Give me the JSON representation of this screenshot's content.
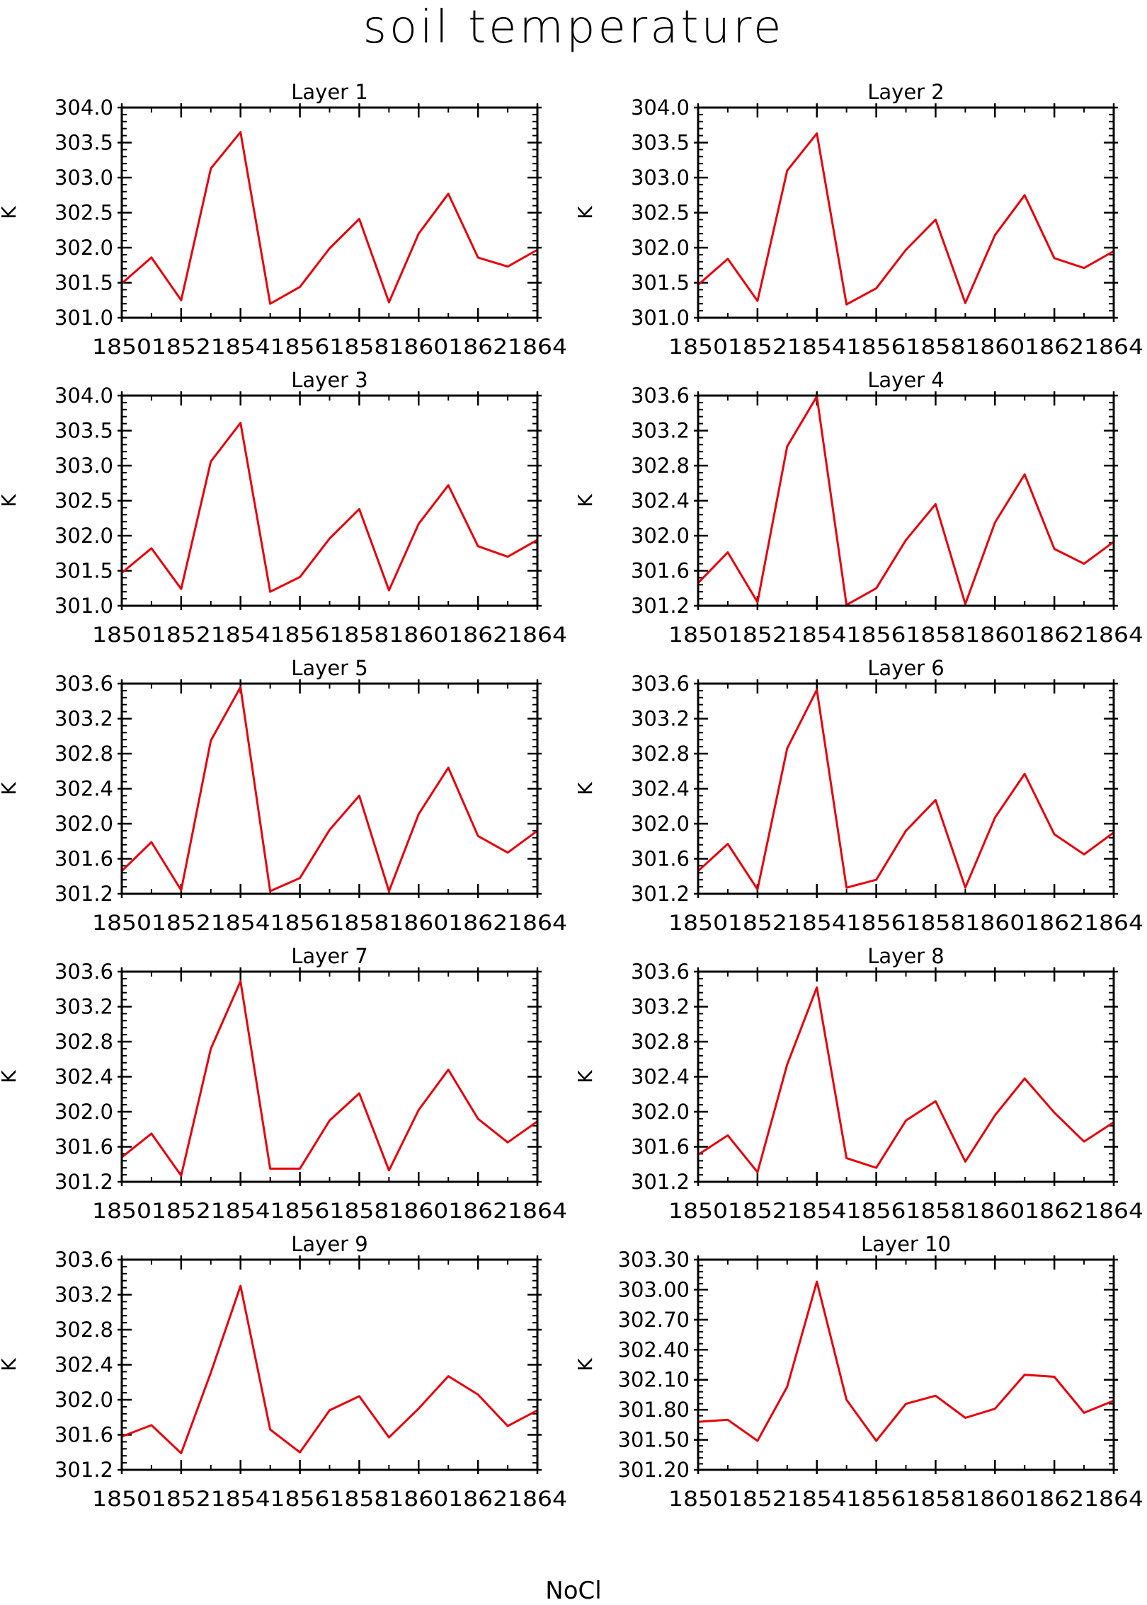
{
  "figure": {
    "title": "soil temperature",
    "footer": "NoCl",
    "line_color": "#e8000b"
  },
  "chart_data": [
    {
      "type": "line",
      "title": "Layer 1",
      "xlabel": "",
      "ylabel": "K",
      "x": [
        1850,
        1851,
        1852,
        1853,
        1854,
        1855,
        1856,
        1857,
        1858,
        1859,
        1860,
        1861,
        1862,
        1863,
        1864
      ],
      "xticks": [
        "1850",
        "1852",
        "1854",
        "1856",
        "1858",
        "1860",
        "1862",
        "1864"
      ],
      "yticks": [
        "301.0",
        "301.5",
        "302.0",
        "302.5",
        "303.0",
        "303.5",
        "304.0"
      ],
      "ylim": [
        301.0,
        304.0
      ],
      "values": [
        301.49,
        301.86,
        301.25,
        303.13,
        303.65,
        301.2,
        301.44,
        301.99,
        302.41,
        301.22,
        302.2,
        302.77,
        301.86,
        301.73,
        301.97
      ]
    },
    {
      "type": "line",
      "title": "Layer 2",
      "xlabel": "",
      "ylabel": "K",
      "x": [
        1850,
        1851,
        1852,
        1853,
        1854,
        1855,
        1856,
        1857,
        1858,
        1859,
        1860,
        1861,
        1862,
        1863,
        1864
      ],
      "xticks": [
        "1850",
        "1852",
        "1854",
        "1856",
        "1858",
        "1860",
        "1862",
        "1864"
      ],
      "yticks": [
        "301.0",
        "301.5",
        "302.0",
        "302.5",
        "303.0",
        "303.5",
        "304.0"
      ],
      "ylim": [
        301.0,
        304.0
      ],
      "values": [
        301.47,
        301.84,
        301.24,
        303.1,
        303.63,
        301.19,
        301.42,
        301.97,
        302.4,
        301.21,
        302.18,
        302.75,
        301.85,
        301.71,
        301.95
      ]
    },
    {
      "type": "line",
      "title": "Layer 3",
      "xlabel": "",
      "ylabel": "K",
      "x": [
        1850,
        1851,
        1852,
        1853,
        1854,
        1855,
        1856,
        1857,
        1858,
        1859,
        1860,
        1861,
        1862,
        1863,
        1864
      ],
      "xticks": [
        "1850",
        "1852",
        "1854",
        "1856",
        "1858",
        "1860",
        "1862",
        "1864"
      ],
      "yticks": [
        "301.0",
        "301.5",
        "302.0",
        "302.5",
        "303.0",
        "303.5",
        "304.0"
      ],
      "ylim": [
        301.0,
        304.0
      ],
      "values": [
        301.47,
        301.82,
        301.24,
        303.06,
        303.61,
        301.2,
        301.41,
        301.96,
        302.38,
        301.22,
        302.17,
        302.72,
        301.85,
        301.7,
        301.94
      ]
    },
    {
      "type": "line",
      "title": "Layer 4",
      "xlabel": "",
      "ylabel": "K",
      "x": [
        1850,
        1851,
        1852,
        1853,
        1854,
        1855,
        1856,
        1857,
        1858,
        1859,
        1860,
        1861,
        1862,
        1863,
        1864
      ],
      "xticks": [
        "1850",
        "1852",
        "1854",
        "1856",
        "1858",
        "1860",
        "1862",
        "1864"
      ],
      "yticks": [
        "301.2",
        "301.6",
        "302.0",
        "302.4",
        "302.8",
        "303.2",
        "303.6"
      ],
      "ylim": [
        301.2,
        303.6
      ],
      "values": [
        301.46,
        301.81,
        301.24,
        303.02,
        303.59,
        301.21,
        301.4,
        301.95,
        302.36,
        301.22,
        302.15,
        302.7,
        301.85,
        301.68,
        301.93
      ]
    },
    {
      "type": "line",
      "title": "Layer 5",
      "xlabel": "",
      "ylabel": "K",
      "x": [
        1850,
        1851,
        1852,
        1853,
        1854,
        1855,
        1856,
        1857,
        1858,
        1859,
        1860,
        1861,
        1862,
        1863,
        1864
      ],
      "xticks": [
        "1850",
        "1852",
        "1854",
        "1856",
        "1858",
        "1860",
        "1862",
        "1864"
      ],
      "yticks": [
        "301.2",
        "301.6",
        "302.0",
        "302.4",
        "302.8",
        "303.2",
        "303.6"
      ],
      "ylim": [
        301.2,
        303.6
      ],
      "values": [
        301.46,
        301.79,
        301.24,
        302.95,
        303.56,
        301.23,
        301.38,
        301.93,
        302.32,
        301.23,
        302.11,
        302.64,
        301.86,
        301.67,
        301.92
      ]
    },
    {
      "type": "line",
      "title": "Layer 6",
      "xlabel": "",
      "ylabel": "K",
      "x": [
        1850,
        1851,
        1852,
        1853,
        1854,
        1855,
        1856,
        1857,
        1858,
        1859,
        1860,
        1861,
        1862,
        1863,
        1864
      ],
      "xticks": [
        "1850",
        "1852",
        "1854",
        "1856",
        "1858",
        "1860",
        "1862",
        "1864"
      ],
      "yticks": [
        "301.2",
        "301.6",
        "302.0",
        "302.4",
        "302.8",
        "303.2",
        "303.6"
      ],
      "ylim": [
        301.2,
        303.6
      ],
      "values": [
        301.46,
        301.77,
        301.25,
        302.86,
        303.53,
        301.27,
        301.36,
        301.92,
        302.27,
        301.27,
        302.07,
        302.57,
        301.88,
        301.65,
        301.9
      ]
    },
    {
      "type": "line",
      "title": "Layer 7",
      "xlabel": "",
      "ylabel": "K",
      "x": [
        1850,
        1851,
        1852,
        1853,
        1854,
        1855,
        1856,
        1857,
        1858,
        1859,
        1860,
        1861,
        1862,
        1863,
        1864
      ],
      "xticks": [
        "1850",
        "1852",
        "1854",
        "1856",
        "1858",
        "1860",
        "1862",
        "1864"
      ],
      "yticks": [
        "301.2",
        "301.6",
        "302.0",
        "302.4",
        "302.8",
        "303.2",
        "303.6"
      ],
      "ylim": [
        301.2,
        303.6
      ],
      "values": [
        301.48,
        301.75,
        301.27,
        302.72,
        303.49,
        301.35,
        301.35,
        301.9,
        302.21,
        301.33,
        302.02,
        302.48,
        301.92,
        301.65,
        301.89
      ]
    },
    {
      "type": "line",
      "title": "Layer 8",
      "xlabel": "",
      "ylabel": "K",
      "x": [
        1850,
        1851,
        1852,
        1853,
        1854,
        1855,
        1856,
        1857,
        1858,
        1859,
        1860,
        1861,
        1862,
        1863,
        1864
      ],
      "xticks": [
        "1850",
        "1852",
        "1854",
        "1856",
        "1858",
        "1860",
        "1862",
        "1864"
      ],
      "yticks": [
        "301.2",
        "301.6",
        "302.0",
        "302.4",
        "302.8",
        "303.2",
        "303.6"
      ],
      "ylim": [
        301.2,
        303.6
      ],
      "values": [
        301.51,
        301.73,
        301.31,
        302.54,
        303.42,
        301.47,
        301.36,
        301.9,
        302.12,
        301.43,
        301.96,
        302.38,
        301.99,
        301.66,
        301.88
      ]
    },
    {
      "type": "line",
      "title": "Layer 9",
      "xlabel": "",
      "ylabel": "K",
      "x": [
        1850,
        1851,
        1852,
        1853,
        1854,
        1855,
        1856,
        1857,
        1858,
        1859,
        1860,
        1861,
        1862,
        1863,
        1864
      ],
      "xticks": [
        "1850",
        "1852",
        "1854",
        "1856",
        "1858",
        "1860",
        "1862",
        "1864"
      ],
      "yticks": [
        "301.2",
        "301.6",
        "302.0",
        "302.4",
        "302.8",
        "303.2",
        "303.6"
      ],
      "ylim": [
        301.2,
        303.6
      ],
      "values": [
        301.58,
        301.71,
        301.39,
        302.31,
        303.3,
        301.66,
        301.4,
        301.88,
        302.04,
        301.57,
        301.9,
        302.27,
        302.06,
        301.7,
        301.88
      ]
    },
    {
      "type": "line",
      "title": "Layer 10",
      "xlabel": "",
      "ylabel": "K",
      "x": [
        1850,
        1851,
        1852,
        1853,
        1854,
        1855,
        1856,
        1857,
        1858,
        1859,
        1860,
        1861,
        1862,
        1863,
        1864
      ],
      "xticks": [
        "1850",
        "1852",
        "1854",
        "1856",
        "1858",
        "1860",
        "1862",
        "1864"
      ],
      "yticks": [
        "301.20",
        "301.50",
        "301.80",
        "302.10",
        "302.40",
        "302.70",
        "303.00",
        "303.30"
      ],
      "ylim": [
        301.2,
        303.3
      ],
      "values": [
        301.68,
        301.7,
        301.49,
        302.03,
        303.08,
        301.9,
        301.49,
        301.86,
        301.94,
        301.72,
        301.81,
        302.15,
        302.13,
        301.77,
        301.89
      ]
    }
  ]
}
